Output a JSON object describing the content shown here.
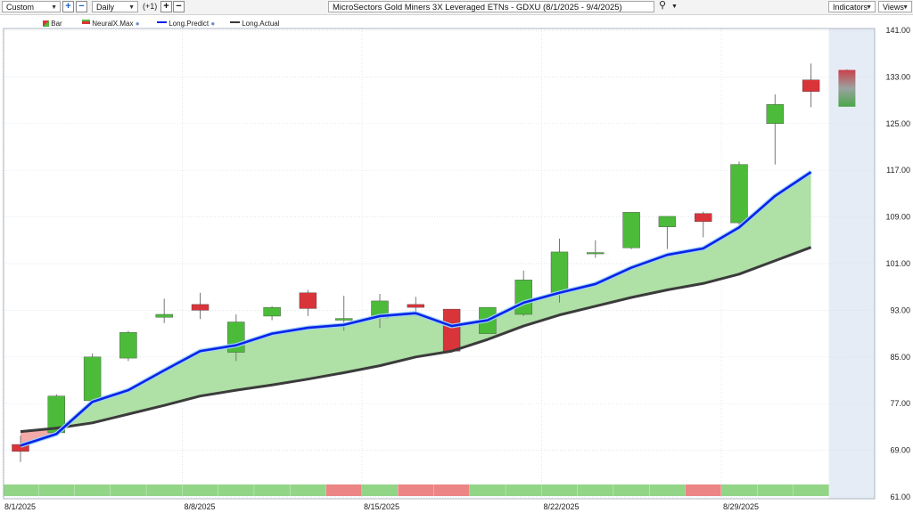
{
  "toolbar": {
    "period": "Custom",
    "interval": "Daily",
    "offset": "(+1)",
    "symbol_title": "MicroSectors Gold Miners 3X Leveraged ETNs - GDXU (8/1/2025 - 9/4/2025)",
    "indicators_label": "Indicators",
    "views_label": "Views"
  },
  "legend": {
    "bar": "Bar",
    "neuralx": "NeuralX.Max",
    "long_predict": "Long.Predict",
    "long_actual": "Long.Actual"
  },
  "colors": {
    "up": "#4cbb3a",
    "down": "#d9343a",
    "predict": "#0a23e8",
    "actual": "#3b3b3b",
    "fill": "#a6dd9c",
    "strip_up": "#92d587",
    "strip_down": "#ec8585",
    "forecast_zone": "#e6ecf6"
  },
  "chart_data": {
    "type": "candlestick",
    "title": "MicroSectors Gold Miners 3X Leveraged ETNs - GDXU (8/1/2025 - 9/4/2025)",
    "ylim": [
      61,
      141
    ],
    "yticks": [
      "141.00",
      "133.00",
      "125.00",
      "117.00",
      "109.00",
      "101.00",
      "93.00",
      "85.00",
      "77.00",
      "69.00",
      "61.00"
    ],
    "xticks": [
      {
        "index": 0,
        "label": "8/1/2025"
      },
      {
        "index": 5,
        "label": "8/8/2025"
      },
      {
        "index": 10,
        "label": "8/15/2025"
      },
      {
        "index": 15,
        "label": "8/22/2025"
      },
      {
        "index": 20,
        "label": "8/29/2025"
      }
    ],
    "candles": [
      {
        "date": "8/1/2025",
        "open": 70.0,
        "high": 71.5,
        "low": 67.0,
        "close": 68.8
      },
      {
        "date": "8/4/2025",
        "open": 72.0,
        "high": 78.6,
        "low": 71.8,
        "close": 78.3
      },
      {
        "date": "8/5/2025",
        "open": 77.5,
        "high": 85.6,
        "low": 77.0,
        "close": 85.0
      },
      {
        "date": "8/6/2025",
        "open": 84.8,
        "high": 89.5,
        "low": 84.3,
        "close": 89.2
      },
      {
        "date": "8/7/2025",
        "open": 91.8,
        "high": 95.0,
        "low": 90.8,
        "close": 92.3
      },
      {
        "date": "8/8/2025",
        "open": 94.0,
        "high": 96.0,
        "low": 91.5,
        "close": 93.0
      },
      {
        "date": "8/11/2025",
        "open": 85.8,
        "high": 92.3,
        "low": 84.3,
        "close": 91.0
      },
      {
        "date": "8/12/2025",
        "open": 92.0,
        "high": 93.7,
        "low": 91.3,
        "close": 93.5
      },
      {
        "date": "8/13/2025",
        "open": 96.0,
        "high": 96.5,
        "low": 92.0,
        "close": 93.3
      },
      {
        "date": "8/14/2025",
        "open": 91.3,
        "high": 95.5,
        "low": 89.5,
        "close": 91.6
      },
      {
        "date": "8/15/2025",
        "open": 91.7,
        "high": 95.8,
        "low": 90.0,
        "close": 94.6
      },
      {
        "date": "8/18/2025",
        "open": 94.0,
        "high": 95.3,
        "low": 92.0,
        "close": 93.5
      },
      {
        "date": "8/19/2025",
        "open": 93.2,
        "high": 93.2,
        "low": 86.0,
        "close": 86.0
      },
      {
        "date": "8/20/2025",
        "open": 89.0,
        "high": 93.5,
        "low": 89.0,
        "close": 93.5
      },
      {
        "date": "8/21/2025",
        "open": 92.3,
        "high": 99.8,
        "low": 92.0,
        "close": 98.2
      },
      {
        "date": "8/22/2025",
        "open": 96.0,
        "high": 105.3,
        "low": 94.3,
        "close": 103.0
      },
      {
        "date": "8/25/2025",
        "open": 102.7,
        "high": 105.0,
        "low": 102.0,
        "close": 102.9
      },
      {
        "date": "8/26/2025",
        "open": 103.7,
        "high": 109.8,
        "low": 103.5,
        "close": 109.8
      },
      {
        "date": "8/27/2025",
        "open": 107.3,
        "high": 109.1,
        "low": 103.5,
        "close": 109.1
      },
      {
        "date": "8/28/2025",
        "open": 109.6,
        "high": 109.9,
        "low": 105.5,
        "close": 108.2
      },
      {
        "date": "8/29/2025",
        "open": 108.0,
        "high": 118.5,
        "low": 107.5,
        "close": 118.0
      },
      {
        "date": "9/1/2025",
        "open": 125.0,
        "high": 130.0,
        "low": 118.0,
        "close": 128.3
      },
      {
        "date": "9/2/2025",
        "open": 132.5,
        "high": 135.3,
        "low": 127.8,
        "close": 130.5
      },
      {
        "date": "9/3/2025",
        "open": 134.2,
        "high": 134.3,
        "low": 127.9,
        "close": 127.9,
        "forecast": true
      }
    ],
    "series": [
      {
        "name": "Long.Predict",
        "values": [
          69.8,
          71.8,
          77.3,
          79.3,
          82.7,
          86.0,
          87.0,
          89.0,
          90.0,
          90.5,
          92.0,
          92.5,
          90.3,
          91.3,
          94.3,
          96.0,
          97.5,
          100.3,
          102.5,
          103.6,
          107.2,
          112.6,
          116.7
        ]
      },
      {
        "name": "Long.Actual",
        "values": [
          72.2,
          72.8,
          73.7,
          75.2,
          76.7,
          78.3,
          79.3,
          80.2,
          81.2,
          82.3,
          83.5,
          85.0,
          86.0,
          88.0,
          90.3,
          92.2,
          93.7,
          95.2,
          96.5,
          97.6,
          99.2,
          101.5,
          103.8
        ]
      }
    ],
    "signal_strip": [
      "up",
      "up",
      "up",
      "up",
      "up",
      "up",
      "up",
      "up",
      "up",
      "down",
      "up",
      "down",
      "down",
      "up",
      "up",
      "up",
      "up",
      "up",
      "up",
      "down",
      "up",
      "up",
      "up"
    ]
  }
}
